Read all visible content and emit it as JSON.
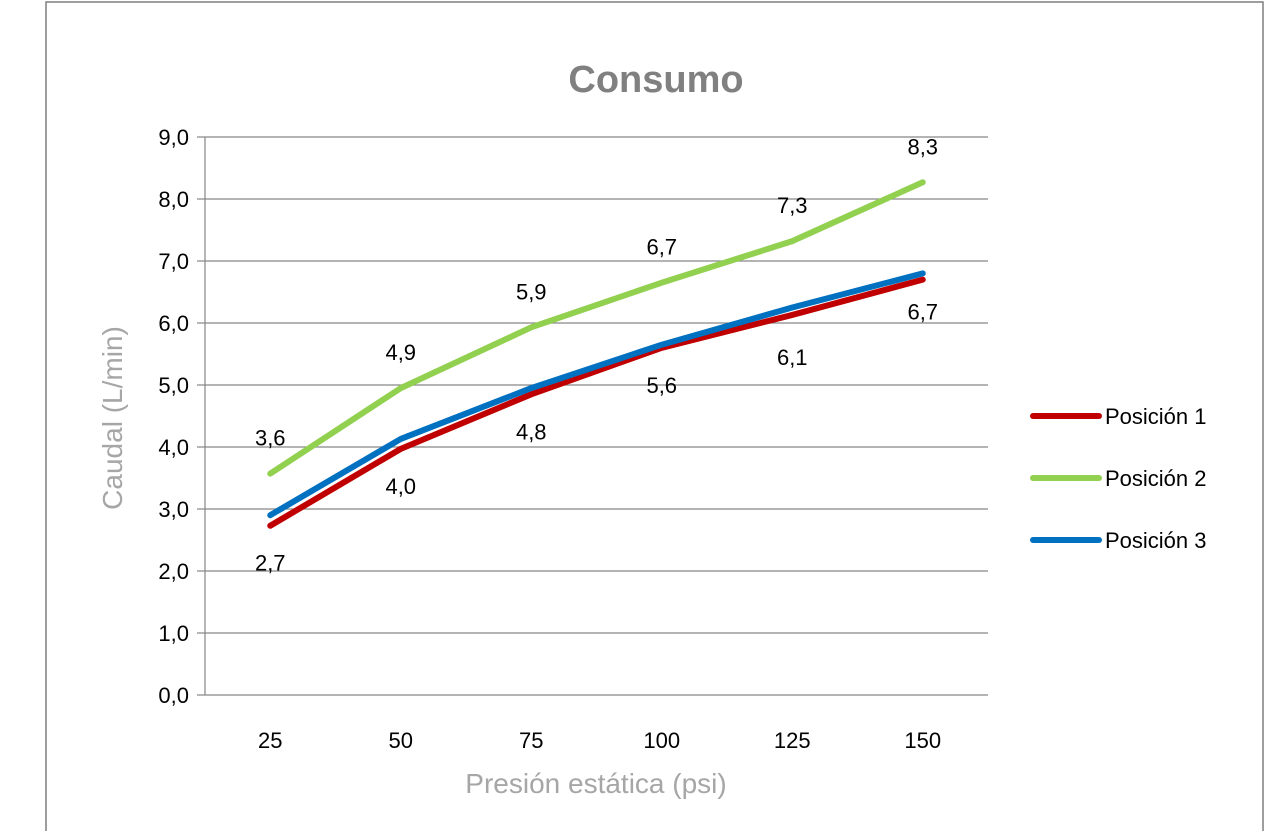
{
  "chart_data": {
    "type": "line",
    "title": "Consumo",
    "xlabel": "Presión estática (psi)",
    "ylabel": "Caudal (L/min)",
    "categories": [
      "25",
      "50",
      "75",
      "100",
      "125",
      "150"
    ],
    "ylim": [
      0,
      9
    ],
    "yticks": [
      "0,0",
      "1,0",
      "2,0",
      "3,0",
      "4,0",
      "5,0",
      "6,0",
      "7,0",
      "8,0",
      "9,0"
    ],
    "grid": true,
    "legend": "right",
    "series": [
      {
        "name": "Posición 1",
        "color": "#c00000",
        "values": [
          2.73,
          3.97,
          4.85,
          5.6,
          6.13,
          6.7
        ],
        "labels": [
          "2,7",
          "4,0",
          "4,8",
          "5,6",
          "6,1",
          "6,7"
        ]
      },
      {
        "name": "Posición 2",
        "color": "#92d050",
        "values": [
          3.57,
          4.95,
          5.93,
          6.65,
          7.32,
          8.27
        ],
        "labels": [
          "3,6",
          "4,9",
          "5,9",
          "6,7",
          "7,3",
          "8,3"
        ]
      },
      {
        "name": "Posición 3",
        "color": "#0070c0",
        "values": [
          2.9,
          4.13,
          4.95,
          5.65,
          6.25,
          6.8
        ],
        "labels": [
          null,
          null,
          null,
          null,
          null,
          null
        ]
      }
    ]
  }
}
